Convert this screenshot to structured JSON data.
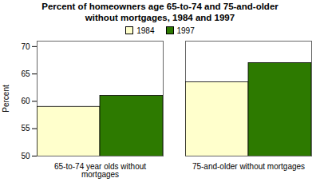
{
  "chart_data": {
    "type": "bar",
    "title": "Percent of homeowners age 65-to-74 and 75-and-older\nwithout mortgages, 1984 and 1997",
    "categories": [
      "65-to-74 year olds without\nmortgages",
      "75-and-older without mortgages"
    ],
    "series": [
      {
        "name": "1984",
        "color": "#FFFFCC",
        "values": [
          59,
          63.5
        ]
      },
      {
        "name": "1997",
        "color": "#2D7A00",
        "values": [
          61,
          67
        ]
      }
    ],
    "ylabel": "Percent",
    "ylim": [
      50,
      71
    ],
    "yticks": [
      50,
      55,
      60,
      65,
      70
    ],
    "grid": false,
    "legend": "top"
  }
}
